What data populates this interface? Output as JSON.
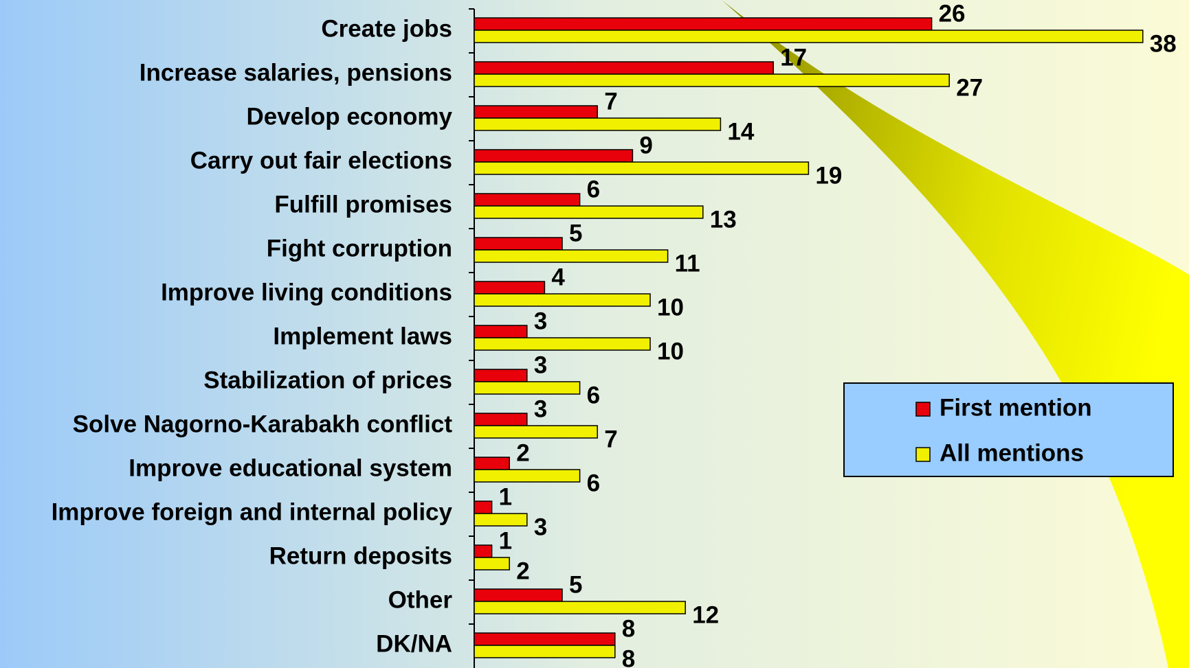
{
  "chart_data": {
    "type": "bar",
    "orientation": "horizontal",
    "categories": [
      "Create jobs",
      "Increase salaries, pensions",
      "Develop economy",
      "Carry out fair elections",
      "Fulfill promises",
      "Fight corruption",
      "Improve living conditions",
      "Implement laws",
      "Stabilization of prices",
      "Solve Nagorno-Karabakh conflict",
      "Improve educational system",
      "Improve foreign and internal policy",
      "Return deposits",
      "Other",
      "DK/NA"
    ],
    "series": [
      {
        "name": "First mention",
        "color": "#e8000b",
        "values": [
          26,
          17,
          7,
          9,
          6,
          5,
          4,
          3,
          3,
          3,
          2,
          1,
          1,
          5,
          8
        ]
      },
      {
        "name": "All mentions",
        "color": "#f0f000",
        "values": [
          38,
          27,
          14,
          19,
          13,
          11,
          10,
          10,
          6,
          7,
          6,
          3,
          2,
          12,
          8
        ]
      }
    ],
    "legend": "right"
  }
}
